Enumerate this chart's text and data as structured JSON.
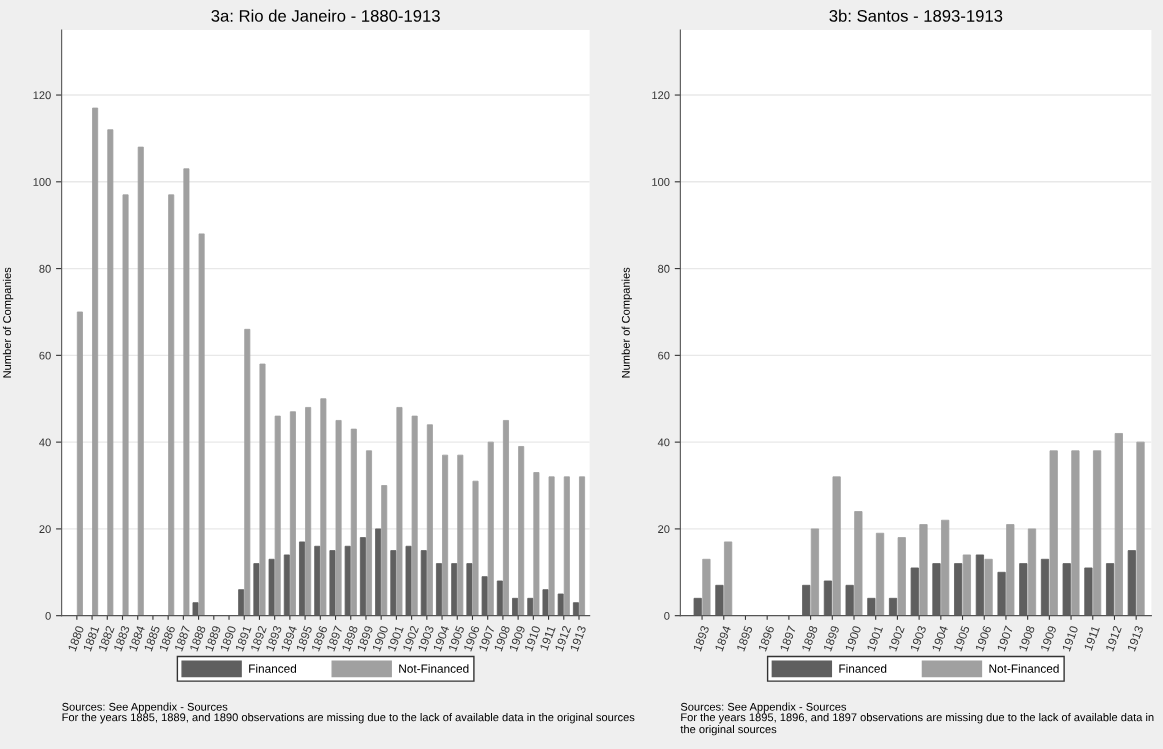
{
  "chart_data": [
    {
      "type": "bar",
      "title": "3a: Rio de Janeiro - 1880-1913",
      "ylabel": "Number of Companies",
      "categories": [
        "1880",
        "1881",
        "1882",
        "1883",
        "1884",
        "1885",
        "1886",
        "1887",
        "1888",
        "1889",
        "1890",
        "1891",
        "1892",
        "1893",
        "1894",
        "1895",
        "1896",
        "1897",
        "1898",
        "1899",
        "1900",
        "1901",
        "1902",
        "1903",
        "1904",
        "1905",
        "1906",
        "1907",
        "1908",
        "1909",
        "1910",
        "1911",
        "1912",
        "1913"
      ],
      "series": [
        {
          "name": "Financed",
          "color": "#5f5f5f",
          "values": [
            null,
            null,
            null,
            null,
            null,
            null,
            null,
            null,
            3,
            null,
            null,
            6,
            12,
            13,
            14,
            17,
            16,
            15,
            16,
            18,
            20,
            15,
            16,
            15,
            12,
            12,
            12,
            9,
            8,
            4,
            4,
            6,
            5,
            3
          ]
        },
        {
          "name": "Not-Financed",
          "color": "#a0a0a0",
          "values": [
            70,
            117,
            112,
            97,
            108,
            null,
            97,
            103,
            88,
            null,
            null,
            66,
            58,
            46,
            47,
            48,
            50,
            45,
            43,
            38,
            30,
            48,
            46,
            44,
            37,
            37,
            31,
            40,
            45,
            39,
            33,
            32,
            32,
            32
          ]
        }
      ],
      "ylim": [
        0,
        135
      ],
      "yticks": [
        0,
        20,
        40,
        60,
        80,
        100,
        120
      ],
      "grid": "y",
      "legend": "bottom",
      "annotations": [
        "Sources: See Appendix - Sources",
        "For the years 1885, 1889, and 1890 observations are missing due to the lack of available data in the original sources"
      ]
    },
    {
      "type": "bar",
      "title": "3b: Santos - 1893-1913",
      "ylabel": "Number of Companies",
      "categories": [
        "1893",
        "1894",
        "1895",
        "1896",
        "1897",
        "1898",
        "1899",
        "1900",
        "1901",
        "1902",
        "1903",
        "1904",
        "1905",
        "1906",
        "1907",
        "1908",
        "1909",
        "1910",
        "1911",
        "1912",
        "1913"
      ],
      "series": [
        {
          "name": "Financed",
          "color": "#5f5f5f",
          "values": [
            4,
            7,
            null,
            null,
            null,
            7,
            8,
            7,
            4,
            4,
            11,
            12,
            12,
            14,
            10,
            12,
            13,
            12,
            11,
            12,
            15
          ]
        },
        {
          "name": "Not-Financed",
          "color": "#a0a0a0",
          "values": [
            13,
            17,
            null,
            null,
            null,
            20,
            32,
            24,
            19,
            18,
            21,
            22,
            14,
            13,
            21,
            20,
            38,
            38,
            38,
            42,
            40
          ]
        }
      ],
      "ylim": [
        0,
        135
      ],
      "yticks": [
        0,
        20,
        40,
        60,
        80,
        100,
        120
      ],
      "grid": "y",
      "legend": "bottom",
      "annotations": [
        "Sources: See Appendix - Sources",
        "For the years 1895, 1896, and 1897 observations are missing due to the lack of available data in the original sources"
      ]
    }
  ]
}
